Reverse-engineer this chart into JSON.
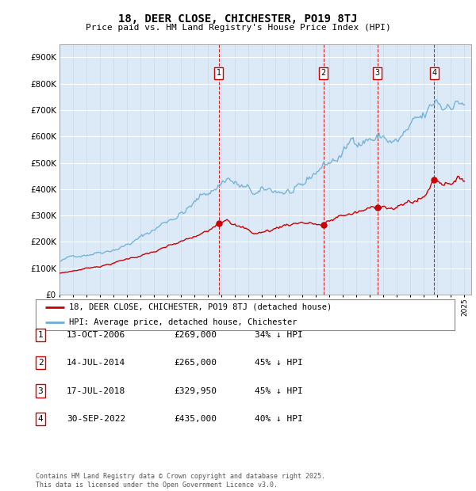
{
  "title": "18, DEER CLOSE, CHICHESTER, PO19 8TJ",
  "subtitle": "Price paid vs. HM Land Registry's House Price Index (HPI)",
  "ylim": [
    0,
    950000
  ],
  "yticks": [
    0,
    100000,
    200000,
    300000,
    400000,
    500000,
    600000,
    700000,
    800000,
    900000
  ],
  "plot_bg": "#dce9f7",
  "hpi_color": "#6baed6",
  "price_color": "#cc0000",
  "vline_color": "#cc0000",
  "sale_dates": [
    2006.79,
    2014.54,
    2018.54,
    2022.75
  ],
  "sale_prices": [
    269000,
    265000,
    329950,
    435000
  ],
  "sale_labels": [
    "1",
    "2",
    "3",
    "4"
  ],
  "legend_price_label": "18, DEER CLOSE, CHICHESTER, PO19 8TJ (detached house)",
  "legend_hpi_label": "HPI: Average price, detached house, Chichester",
  "table_rows": [
    [
      "1",
      "13-OCT-2006",
      "£269,000",
      "34% ↓ HPI"
    ],
    [
      "2",
      "14-JUL-2014",
      "£265,000",
      "45% ↓ HPI"
    ],
    [
      "3",
      "17-JUL-2018",
      "£329,950",
      "45% ↓ HPI"
    ],
    [
      "4",
      "30-SEP-2022",
      "£435,000",
      "40% ↓ HPI"
    ]
  ],
  "footer": "Contains HM Land Registry data © Crown copyright and database right 2025.\nThis data is licensed under the Open Government Licence v3.0.",
  "xmin": 1995,
  "xmax": 2025.5
}
